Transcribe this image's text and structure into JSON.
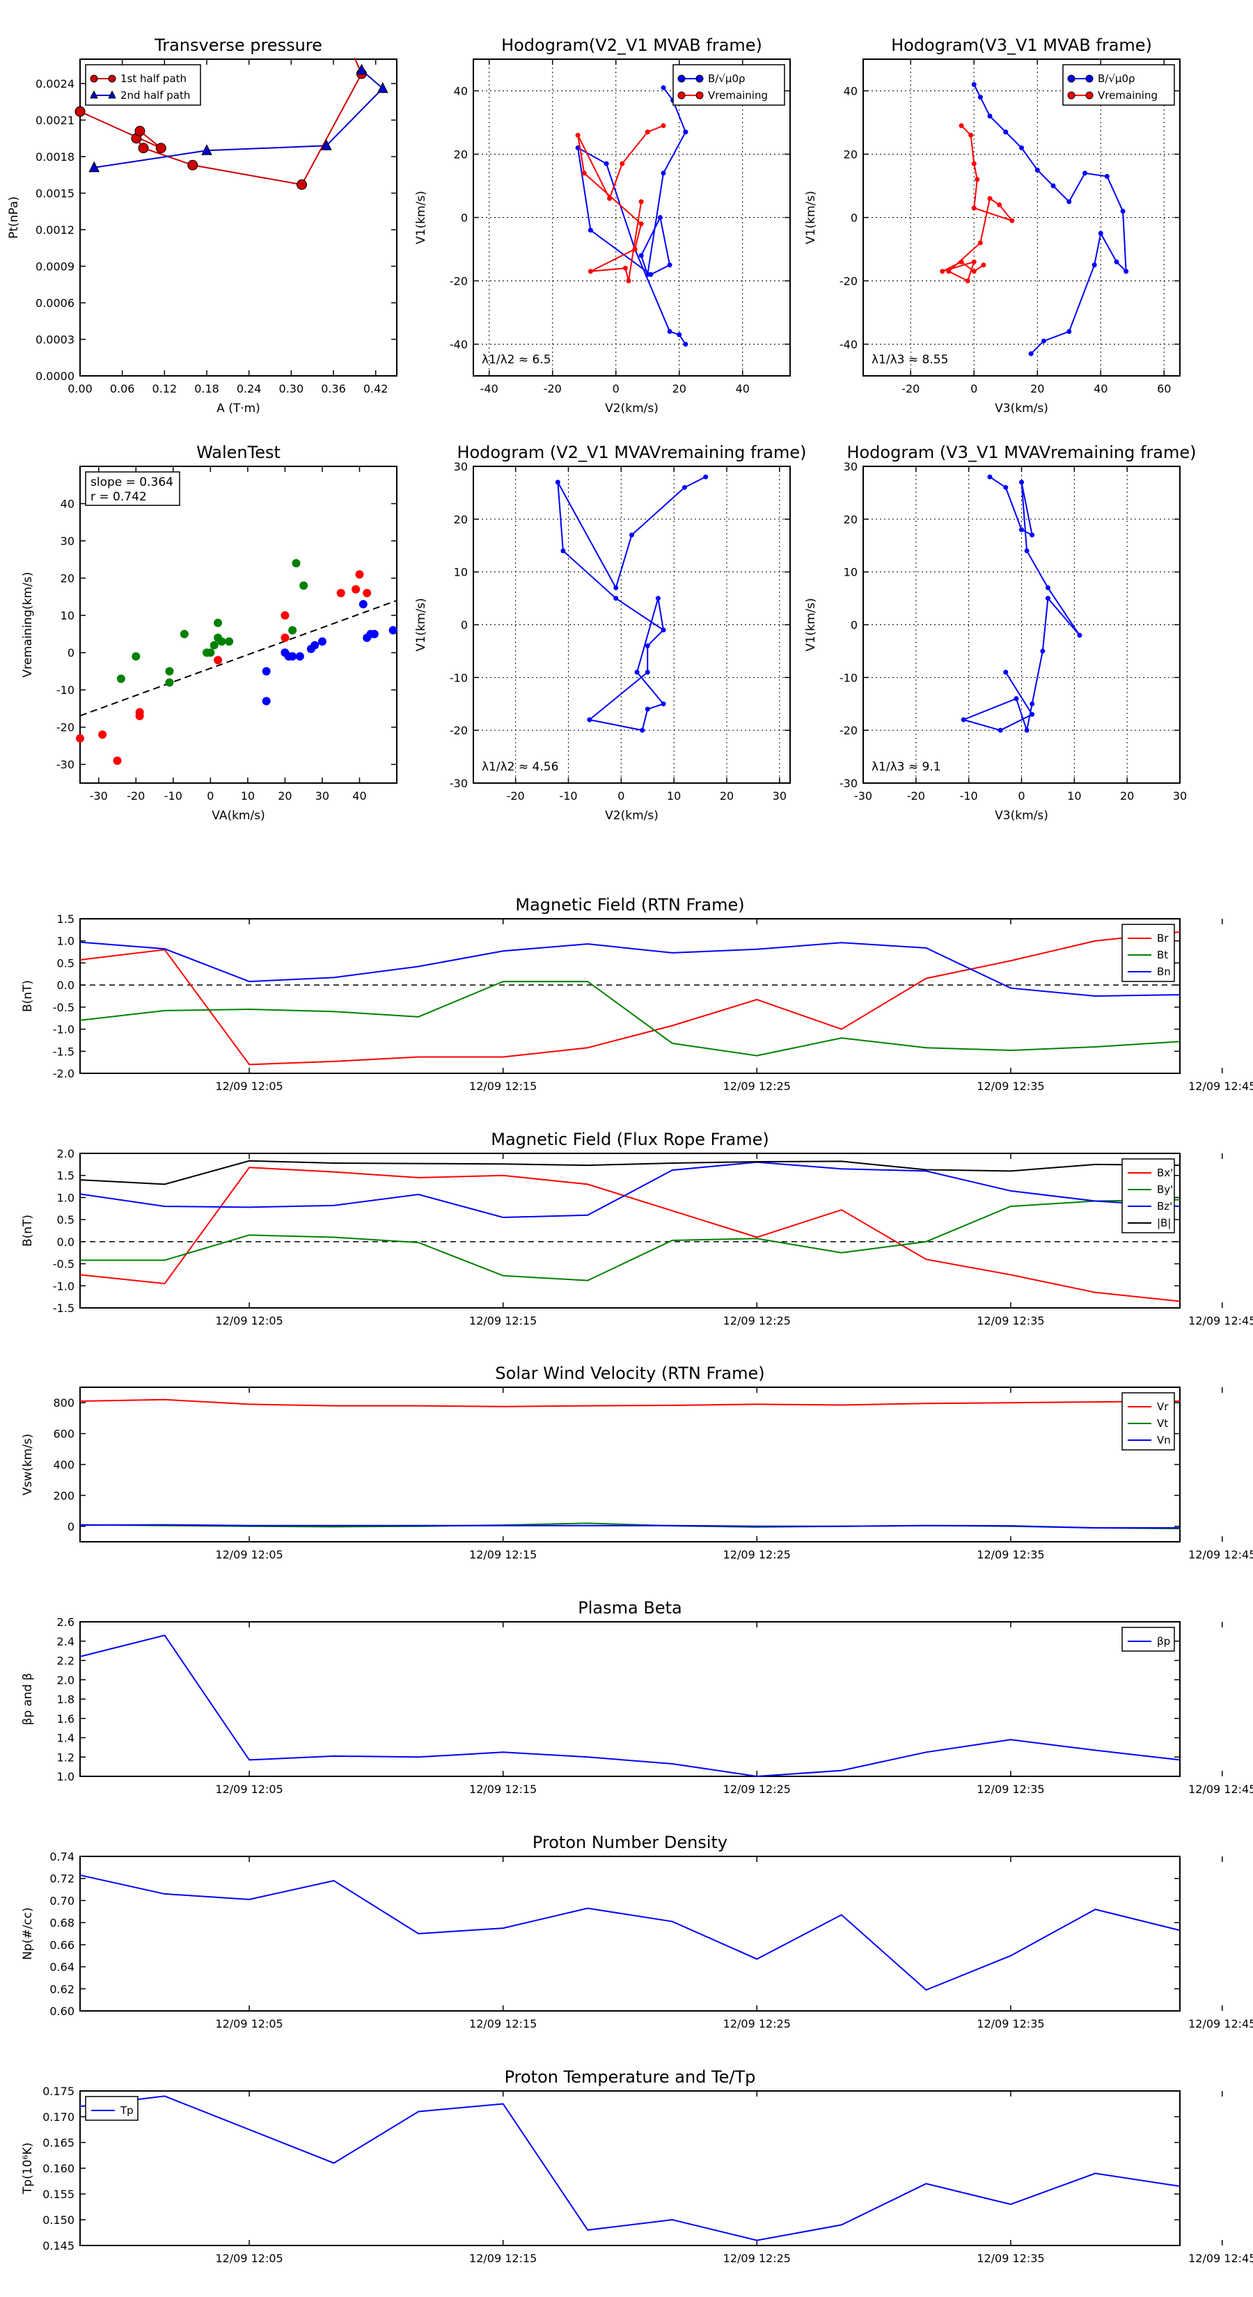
{
  "chart_data": [
    {
      "id": "pt",
      "type": "scatter",
      "title": "Transverse pressure",
      "xlabel": "A (T·m)",
      "ylabel": "Pt(nPa)",
      "xlim": [
        0,
        0.45
      ],
      "ylim": [
        0,
        0.0026
      ],
      "xticks": [
        0.0,
        0.06,
        0.12,
        0.18,
        0.24,
        0.3,
        0.36,
        0.42
      ],
      "xtick_labels": [
        "0.00",
        "0.06",
        "0.12",
        "0.18",
        "0.24",
        "0.30",
        "0.36",
        "0.42"
      ],
      "yticks": [
        0,
        0.0003,
        0.0006,
        0.0009,
        0.0012,
        0.0015,
        0.0018,
        0.0021,
        0.0024
      ],
      "ytick_labels": [
        "0.0000",
        "0.0003",
        "0.0006",
        "0.0009",
        "0.0012",
        "0.0015",
        "0.0018",
        "0.0021",
        "0.0024"
      ],
      "grid": false,
      "legend": "upper-left",
      "series": [
        {
          "name": "1st half path",
          "color": "#cc0000",
          "marker": "circle",
          "x": [
            0.39,
            0.4,
            0.315,
            0.16,
            0.09,
            0.08,
            0.085,
            0.115,
            0.0,
            0.0
          ],
          "y": [
            0.00261,
            0.00248,
            0.00157,
            0.00173,
            0.00187,
            0.00195,
            0.00201,
            0.00187,
            0.00217,
            0.00217
          ]
        },
        {
          "name": "2nd half path",
          "color": "#0000cc",
          "marker": "triangle",
          "x": [
            0.4,
            0.43,
            0.35,
            0.18,
            0.02
          ],
          "y": [
            0.00251,
            0.00236,
            0.00189,
            0.00185,
            0.00171
          ]
        }
      ]
    },
    {
      "id": "h1",
      "type": "line",
      "title": "Hodogram(V2_V1 MVAB frame)",
      "xlabel": "V2(km/s)",
      "ylabel": "V1(km/s)",
      "xlim": [
        -45,
        55
      ],
      "ylim": [
        -50,
        50
      ],
      "xticks": [
        -40,
        -20,
        0,
        20,
        40
      ],
      "yticks": [
        -40,
        -20,
        0,
        20,
        40
      ],
      "grid": true,
      "legend": "upper-right",
      "annotation": "λ1/λ2 ≈ 6.5",
      "series": [
        {
          "name": "B/√μ0ρ",
          "color": "#0000ff",
          "x": [
            15,
            18,
            22,
            15,
            10,
            8,
            14,
            17,
            11,
            -8,
            -12,
            -3,
            6,
            17,
            20,
            22
          ],
          "y": [
            41,
            37,
            27,
            14,
            -18,
            -12,
            0,
            -15,
            -18,
            -4,
            22,
            17,
            -10,
            -36,
            -37,
            -40
          ]
        },
        {
          "name": "Vremaining",
          "color": "#ff0000",
          "x": [
            15,
            10,
            2,
            -2,
            -12,
            -10,
            8,
            6,
            -8,
            3,
            4,
            8
          ],
          "y": [
            29,
            27,
            17,
            6,
            26,
            14,
            -2,
            -10,
            -17,
            -16,
            -20,
            5
          ]
        }
      ]
    },
    {
      "id": "h2",
      "type": "line",
      "title": "Hodogram(V3_V1 MVAB frame)",
      "xlabel": "V3(km/s)",
      "ylabel": "V1(km/s)",
      "xlim": [
        -35,
        65
      ],
      "ylim": [
        -50,
        50
      ],
      "xticks": [
        -20,
        0,
        20,
        40,
        60
      ],
      "yticks": [
        -40,
        -20,
        0,
        20,
        40
      ],
      "grid": true,
      "legend": "upper-right",
      "annotation": "λ1/λ3 ≈ 8.55",
      "series": [
        {
          "name": "B/√μ0ρ",
          "color": "#0000ff",
          "x": [
            0,
            2,
            5,
            10,
            15,
            20,
            25,
            30,
            35,
            42,
            47,
            48,
            45,
            40,
            38,
            30,
            22,
            18
          ],
          "y": [
            42,
            38,
            32,
            27,
            22,
            15,
            10,
            5,
            14,
            13,
            2,
            -17,
            -14,
            -5,
            -15,
            -36,
            -39,
            -43
          ]
        },
        {
          "name": "Vremaining",
          "color": "#ff0000",
          "x": [
            -4,
            -1,
            0,
            1,
            0,
            12,
            8,
            5,
            2,
            -8,
            -2,
            0,
            -10,
            -4,
            0,
            3
          ],
          "y": [
            29,
            26,
            17,
            12,
            3,
            -1,
            4,
            6,
            -8,
            -17,
            -20,
            -14,
            -17,
            -14,
            -17,
            -15
          ]
        }
      ]
    },
    {
      "id": "wt",
      "type": "scatter",
      "title": "WalenTest",
      "xlabel": "VA(km/s)",
      "ylabel": "Vremaining(km/s)",
      "xlim": [
        -35,
        50
      ],
      "ylim": [
        -35,
        50
      ],
      "xticks": [
        -30,
        -20,
        -10,
        0,
        10,
        20,
        30,
        40
      ],
      "yticks": [
        -30,
        -20,
        -10,
        0,
        10,
        20,
        30,
        40
      ],
      "grid": false,
      "annotation_lines": [
        "slope = 0.364",
        "r = 0.742"
      ],
      "fit_line": {
        "slope": 0.364,
        "intercept": -4.2
      },
      "series": [
        {
          "color": "#ff0000",
          "x": [
            -35,
            -29,
            -25,
            -19,
            -19,
            2,
            20,
            20,
            35,
            39,
            40,
            42
          ],
          "y": [
            -23,
            -22,
            -29,
            -16,
            -17,
            -2,
            4,
            10,
            16,
            17,
            21,
            16
          ]
        },
        {
          "color": "#008000",
          "x": [
            -24,
            -20,
            -11,
            -11,
            -7,
            -1,
            0,
            1,
            2,
            2,
            3,
            5,
            22,
            23,
            25
          ],
          "y": [
            -7,
            -1,
            -8,
            -5,
            5,
            0,
            0,
            2,
            8,
            4,
            3,
            3,
            6,
            24,
            18
          ]
        },
        {
          "color": "#0000ff",
          "x": [
            15,
            15,
            20,
            21,
            22,
            24,
            27,
            28,
            30,
            41,
            42,
            43,
            44,
            49
          ],
          "y": [
            -13,
            -5,
            0,
            -1,
            -1,
            -1,
            1,
            2,
            3,
            13,
            4,
            5,
            5,
            6
          ]
        }
      ]
    },
    {
      "id": "h3",
      "type": "line",
      "title": "Hodogram (V2_V1 MVAVremaining frame)",
      "xlabel": "V2(km/s)",
      "ylabel": "V1(km/s)",
      "xlim": [
        -28,
        32
      ],
      "ylim": [
        -30,
        30
      ],
      "xticks": [
        -20,
        -10,
        0,
        10,
        20,
        30
      ],
      "yticks": [
        -30,
        -20,
        -10,
        0,
        10,
        20,
        30
      ],
      "grid": true,
      "annotation": "λ1/λ2 ≈ 4.56",
      "series": [
        {
          "color": "#0000ff",
          "x": [
            16,
            12,
            2,
            -1,
            -12,
            -11,
            -1,
            8,
            5,
            5,
            -6,
            4,
            5,
            8,
            3,
            7,
            8
          ],
          "y": [
            28,
            26,
            17,
            7,
            27,
            14,
            5,
            -1,
            -4,
            -9,
            -18,
            -20,
            -16,
            -15,
            -9,
            5,
            -1
          ]
        }
      ]
    },
    {
      "id": "h4",
      "type": "line",
      "title": "Hodogram (V3_V1 MVAVremaining frame)",
      "xlabel": "V3(km/s)",
      "ylabel": "V1(km/s)",
      "xlim": [
        -30,
        30
      ],
      "ylim": [
        -30,
        30
      ],
      "xticks": [
        -30,
        -20,
        -10,
        0,
        10,
        20,
        30
      ],
      "yticks": [
        -30,
        -20,
        -10,
        0,
        10,
        20,
        30
      ],
      "grid": true,
      "annotation": "λ1/λ3 ≈ 9.1",
      "series": [
        {
          "color": "#0000ff",
          "x": [
            -6,
            -3,
            0,
            2,
            0,
            1,
            5,
            11,
            5,
            4,
            2,
            1,
            -1,
            -11,
            -4,
            2,
            -3
          ],
          "y": [
            28,
            26,
            18,
            17,
            27,
            14,
            7,
            -2,
            5,
            -5,
            -15,
            -20,
            -14,
            -18,
            -20,
            -17,
            -9
          ]
        }
      ]
    },
    {
      "id": "ts1",
      "type": "line",
      "title": "Magnetic Field (RTN Frame)",
      "ylabel": "B(nT)",
      "x_labels": [
        "12/09 12:05",
        "12/09 12:15",
        "12/09 12:25",
        "12/09 12:35",
        "12/09 12:45"
      ],
      "ylim": [
        -2.0,
        1.5
      ],
      "yticks": [
        -2.0,
        -1.5,
        -1.0,
        -0.5,
        0.0,
        0.5,
        1.0,
        1.5
      ],
      "ytick_labels": [
        "-2.0",
        "-1.5",
        "-1.0",
        "-0.5",
        "0.0",
        "0.5",
        "1.0",
        "1.5"
      ],
      "zero_line": true,
      "legend": "upper-right",
      "series": [
        {
          "name": "Br",
          "color": "#ff0000",
          "values": [
            0.57,
            0.8,
            -1.8,
            -1.73,
            -1.63,
            -1.63,
            -1.42,
            -0.92,
            -0.33,
            -1.0,
            0.15,
            0.55,
            1.0,
            1.2
          ]
        },
        {
          "name": "Bt",
          "color": "#008000",
          "values": [
            -0.8,
            -0.58,
            -0.55,
            -0.6,
            -0.72,
            0.08,
            0.08,
            -1.32,
            -1.6,
            -1.2,
            -1.42,
            -1.48,
            -1.4,
            -1.28
          ]
        },
        {
          "name": "Bn",
          "color": "#0000ff",
          "values": [
            0.97,
            0.82,
            0.08,
            0.17,
            0.42,
            0.77,
            0.93,
            0.73,
            0.81,
            0.96,
            0.84,
            -0.07,
            -0.25,
            -0.22
          ]
        }
      ]
    },
    {
      "id": "ts2",
      "type": "line",
      "title": "Magnetic Field (Flux Rope Frame)",
      "ylabel": "B(nT)",
      "x_labels": [
        "12/09 12:05",
        "12/09 12:15",
        "12/09 12:25",
        "12/09 12:35",
        "12/09 12:45"
      ],
      "ylim": [
        -1.5,
        2.0
      ],
      "yticks": [
        -1.5,
        -1.0,
        -0.5,
        0.0,
        0.5,
        1.0,
        1.5,
        2.0
      ],
      "ytick_labels": [
        "-1.5",
        "-1.0",
        "-0.5",
        "0.0",
        "0.5",
        "1.0",
        "1.5",
        "2.0"
      ],
      "zero_line": true,
      "legend": "upper-right",
      "series": [
        {
          "name": "Bx'",
          "color": "#ff0000",
          "values": [
            -0.75,
            -0.95,
            1.68,
            1.58,
            1.45,
            1.5,
            1.3,
            0.7,
            0.1,
            0.72,
            -0.4,
            -0.75,
            -1.15,
            -1.35
          ]
        },
        {
          "name": "By'",
          "color": "#008000",
          "values": [
            -0.42,
            -0.42,
            0.15,
            0.1,
            -0.02,
            -0.77,
            -0.88,
            0.03,
            0.07,
            -0.25,
            0.0,
            0.8,
            0.92,
            0.95
          ]
        },
        {
          "name": "Bz'",
          "color": "#0000ff",
          "values": [
            1.08,
            0.8,
            0.78,
            0.82,
            1.07,
            0.55,
            0.6,
            1.62,
            1.8,
            1.65,
            1.6,
            1.15,
            0.92,
            0.8
          ]
        },
        {
          "name": "|B|",
          "color": "#000000",
          "values": [
            1.4,
            1.3,
            1.83,
            1.78,
            1.77,
            1.76,
            1.73,
            1.78,
            1.81,
            1.82,
            1.63,
            1.6,
            1.75,
            1.73
          ]
        }
      ]
    },
    {
      "id": "ts3",
      "type": "line",
      "title": "Solar Wind Velocity (RTN Frame)",
      "ylabel": "Vsw(km/s)",
      "x_labels": [
        "12/09 12:05",
        "12/09 12:15",
        "12/09 12:25",
        "12/09 12:35",
        "12/09 12:45"
      ],
      "ylim": [
        -100,
        900
      ],
      "yticks": [
        0,
        200,
        400,
        600,
        800
      ],
      "ytick_labels": [
        "0",
        "200",
        "400",
        "600",
        "800"
      ],
      "legend": "upper-right",
      "series": [
        {
          "name": "Vr",
          "color": "#ff0000",
          "values": [
            810,
            820,
            790,
            780,
            780,
            775,
            780,
            783,
            790,
            785,
            795,
            800,
            805,
            810
          ]
        },
        {
          "name": "Vt",
          "color": "#008000",
          "values": [
            10,
            5,
            0,
            -3,
            0,
            8,
            20,
            3,
            -5,
            0,
            5,
            0,
            -10,
            -15
          ]
        },
        {
          "name": "Vn",
          "color": "#0000ff",
          "values": [
            8,
            10,
            5,
            5,
            5,
            5,
            5,
            5,
            0,
            0,
            5,
            3,
            -10,
            -10
          ]
        }
      ]
    },
    {
      "id": "ts4",
      "type": "line",
      "title": "Plasma Beta",
      "ylabel": "βp and β",
      "x_labels": [
        "12/09 12:05",
        "12/09 12:15",
        "12/09 12:25",
        "12/09 12:35",
        "12/09 12:45"
      ],
      "ylim": [
        1.0,
        2.6
      ],
      "yticks": [
        1.0,
        1.2,
        1.4,
        1.6,
        1.8,
        2.0,
        2.2,
        2.4,
        2.6
      ],
      "ytick_labels": [
        "1.0",
        "1.2",
        "1.4",
        "1.6",
        "1.8",
        "2.0",
        "2.2",
        "2.4",
        "2.6"
      ],
      "legend": "upper-right",
      "series": [
        {
          "name": "βp",
          "color": "#0000ff",
          "values": [
            2.24,
            2.46,
            1.17,
            1.21,
            1.2,
            1.25,
            1.2,
            1.13,
            1.0,
            1.06,
            1.25,
            1.38,
            1.27,
            1.17
          ]
        }
      ]
    },
    {
      "id": "ts5",
      "type": "line",
      "title": "Proton Number Density",
      "ylabel": "Np(#/cc)",
      "x_labels": [
        "12/09 12:05",
        "12/09 12:15",
        "12/09 12:25",
        "12/09 12:35",
        "12/09 12:45"
      ],
      "ylim": [
        0.6,
        0.74
      ],
      "yticks": [
        0.6,
        0.62,
        0.64,
        0.66,
        0.68,
        0.7,
        0.72,
        0.74
      ],
      "ytick_labels": [
        "0.60",
        "0.62",
        "0.64",
        "0.66",
        "0.68",
        "0.70",
        "0.72",
        "0.74"
      ],
      "series": [
        {
          "color": "#0000ff",
          "values": [
            0.723,
            0.706,
            0.701,
            0.718,
            0.67,
            0.675,
            0.693,
            0.681,
            0.647,
            0.687,
            0.619,
            0.65,
            0.692,
            0.673
          ]
        }
      ]
    },
    {
      "id": "ts6",
      "type": "line",
      "title": "Proton Temperature and Te/Tp",
      "ylabel": "Tp(10⁶K)",
      "x_labels": [
        "12/09 12:05",
        "12/09 12:15",
        "12/09 12:25",
        "12/09 12:35",
        "12/09 12:45"
      ],
      "ylim": [
        0.145,
        0.175
      ],
      "yticks": [
        0.145,
        0.15,
        0.155,
        0.16,
        0.165,
        0.17,
        0.175
      ],
      "ytick_labels": [
        "0.145",
        "0.150",
        "0.155",
        "0.160",
        "0.165",
        "0.170",
        "0.175"
      ],
      "legend": "upper-left",
      "series": [
        {
          "name": "Tp",
          "color": "#0000ff",
          "values": [
            0.172,
            0.174,
            0.1675,
            0.161,
            0.171,
            0.1725,
            0.148,
            0.15,
            0.146,
            0.149,
            0.157,
            0.153,
            0.159,
            0.1565
          ]
        }
      ]
    }
  ]
}
